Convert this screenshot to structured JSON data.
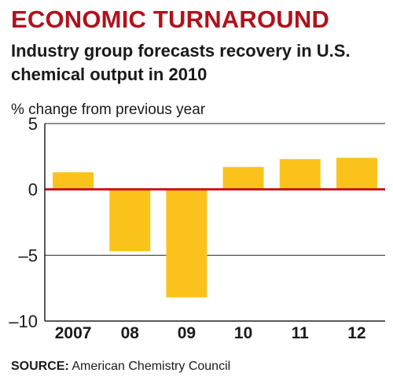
{
  "header": {
    "title": "ECONOMIC TURNAROUND",
    "subtitle": "Industry group forecasts recovery in U.S. chemical output in 2010",
    "unit_label": "% change from previous year"
  },
  "footer": {
    "source_label": "SOURCE:",
    "source_text": "American Chemistry Council"
  },
  "colors": {
    "title": "#b0121d",
    "bar": "#fcc21c",
    "zero_line": "#c21a1a",
    "grid": "#2a2a2a",
    "frame": "#222222",
    "text": "#1a1a1a"
  },
  "chart_data": {
    "type": "bar",
    "categories": [
      "2007",
      "08",
      "09",
      "10",
      "11",
      "12"
    ],
    "values": [
      1.3,
      -4.7,
      -8.2,
      1.7,
      2.3,
      2.4
    ],
    "ylim": [
      -10,
      5
    ],
    "yticks": [
      5,
      0,
      -5,
      -10
    ],
    "ytick_labels": [
      "5",
      "0",
      "–5",
      "–10"
    ],
    "grid": true,
    "xlabel": "",
    "ylabel": "% change from previous year"
  }
}
